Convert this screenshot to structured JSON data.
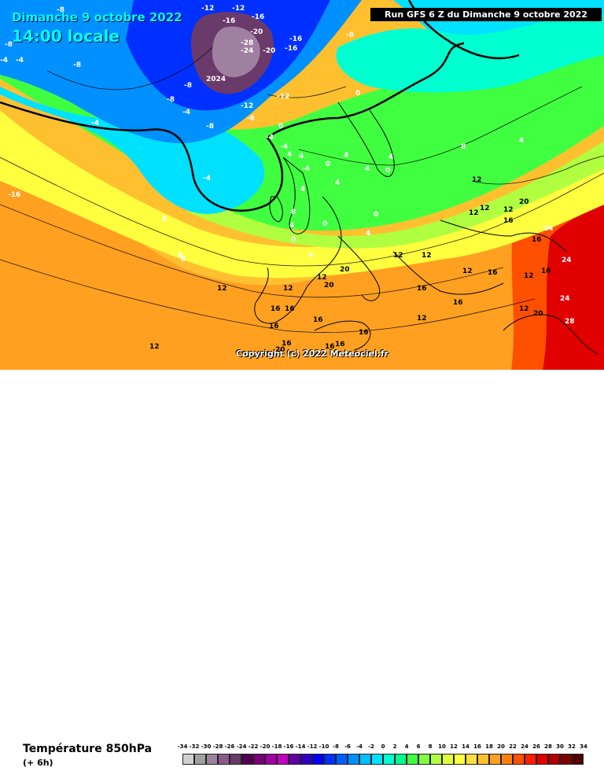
{
  "map": {
    "title_day": "Dimanche 9 octobre 2022",
    "title_time": "14:00 locale",
    "run_label": "Run GFS 6 Z du Dimanche 9 octobre 2022",
    "copyright": "Copyright (c) 2022 Meteociel.fr",
    "labels": [
      {
        "t": "-8",
        "c": "cold"
      },
      {
        "t": "-12",
        "c": "cold"
      },
      {
        "t": "-16",
        "c": "cold"
      },
      {
        "t": "-12",
        "c": "cold"
      },
      {
        "t": "-16",
        "c": "cold"
      },
      {
        "t": "-20",
        "c": "vcold"
      },
      {
        "t": "-28",
        "c": "vcold"
      },
      {
        "t": "-24",
        "c": "vcold"
      },
      {
        "t": "-20",
        "c": "vcold"
      },
      {
        "t": "-16",
        "c": "cold"
      },
      {
        "t": "-16",
        "c": "cold"
      },
      {
        "t": "-8",
        "c": "cold"
      },
      {
        "t": "-8",
        "c": "cold"
      },
      {
        "t": "-8",
        "c": "cold"
      },
      {
        "t": "-4",
        "c": "cold"
      },
      {
        "t": "-12",
        "c": "cold"
      },
      {
        "t": "-12",
        "c": "cold"
      },
      {
        "t": "-8",
        "c": "cold"
      },
      {
        "t": "-4",
        "c": "cold"
      },
      {
        "t": "-4",
        "c": "cold"
      },
      {
        "t": "-8",
        "c": "cold"
      },
      {
        "t": "2024",
        "c": "vcold"
      },
      {
        "t": "-8",
        "c": "cold"
      },
      {
        "t": "0",
        "c": "mid"
      },
      {
        "t": "-4",
        "c": "cold"
      },
      {
        "t": "-4",
        "c": "cold"
      },
      {
        "t": "0",
        "c": "mid"
      },
      {
        "t": "-4",
        "c": "cold"
      },
      {
        "t": "4",
        "c": "mid"
      },
      {
        "t": "4",
        "c": "mid"
      },
      {
        "t": "4",
        "c": "mid"
      },
      {
        "t": "4",
        "c": "mid"
      },
      {
        "t": "0",
        "c": "mid"
      },
      {
        "t": "-4",
        "c": "mid"
      },
      {
        "t": "4",
        "c": "mid"
      },
      {
        "t": "0",
        "c": "mid"
      },
      {
        "t": "0",
        "c": "mid"
      },
      {
        "t": "4",
        "c": "mid"
      },
      {
        "t": "8",
        "c": "mid"
      },
      {
        "t": "4",
        "c": "mid"
      },
      {
        "t": "4",
        "c": "mid"
      },
      {
        "t": "0",
        "c": "mid"
      },
      {
        "t": "0",
        "c": "mid"
      },
      {
        "t": "4",
        "c": "mid"
      },
      {
        "t": "4",
        "c": "mid"
      },
      {
        "t": "8",
        "c": "mid"
      },
      {
        "t": "12",
        "c": "warm"
      },
      {
        "t": "16",
        "c": "warm"
      },
      {
        "t": "16",
        "c": "warm"
      },
      {
        "t": "20",
        "c": "warm"
      },
      {
        "t": "20",
        "c": "warm"
      },
      {
        "t": "24",
        "c": "hot"
      },
      {
        "t": "24",
        "c": "hot"
      },
      {
        "t": "24",
        "c": "hot"
      },
      {
        "t": "28",
        "c": "hot"
      },
      {
        "t": "20",
        "c": "warm"
      },
      {
        "t": "12",
        "c": "warm"
      },
      {
        "t": "12",
        "c": "warm"
      },
      {
        "t": "12",
        "c": "warm"
      },
      {
        "t": "16",
        "c": "warm"
      },
      {
        "t": "16",
        "c": "warm"
      },
      {
        "t": "16",
        "c": "warm"
      },
      {
        "t": "16",
        "c": "warm"
      },
      {
        "t": "12",
        "c": "warm"
      },
      {
        "t": "12",
        "c": "warm"
      },
      {
        "t": "12",
        "c": "warm"
      },
      {
        "t": "16",
        "c": "warm"
      },
      {
        "t": "16",
        "c": "warm"
      },
      {
        "t": "16",
        "c": "warm"
      },
      {
        "t": "20",
        "c": "warm"
      },
      {
        "t": "16",
        "c": "warm"
      },
      {
        "t": "16",
        "c": "warm"
      },
      {
        "t": "16",
        "c": "warm"
      },
      {
        "t": "16",
        "c": "warm"
      },
      {
        "t": "12",
        "c": "warm"
      },
      {
        "t": "12",
        "c": "warm"
      },
      {
        "t": "8",
        "c": "mid"
      },
      {
        "t": "8",
        "c": "mid"
      },
      {
        "t": "12",
        "c": "warm"
      },
      {
        "t": "8",
        "c": "mid"
      },
      {
        "t": "4",
        "c": "mid"
      },
      {
        "t": "-16",
        "c": "cold"
      },
      {
        "t": "-8",
        "c": "cold"
      },
      {
        "t": "-4",
        "c": "cold"
      },
      {
        "t": "12",
        "c": "warm"
      },
      {
        "t": "12",
        "c": "warm"
      },
      {
        "t": "20",
        "c": "warm"
      },
      {
        "t": "16",
        "c": "warm"
      },
      {
        "t": "12",
        "c": "warm"
      },
      {
        "t": "12",
        "c": "warm"
      }
    ]
  },
  "legend": {
    "title": "Température 850hPa",
    "subtitle": "(+ 6h)",
    "ticks": [
      "-34",
      "-32",
      "-30",
      "-28",
      "-26",
      "-24",
      "-22",
      "-20",
      "-18",
      "-16",
      "-14",
      "-12",
      "-10",
      "-8",
      "-6",
      "-4",
      "-2",
      "0",
      "2",
      "4",
      "6",
      "8",
      "10",
      "12",
      "14",
      "16",
      "18",
      "20",
      "22",
      "24",
      "26",
      "28",
      "30",
      "32",
      "34"
    ],
    "colors": [
      "#d0d0d0",
      "#a0a0a0",
      "#a080a0",
      "#8a5a8a",
      "#6a3a6a",
      "#500050",
      "#7a007a",
      "#a000a0",
      "#c000c0",
      "#6000a0",
      "#3000c0",
      "#0000ff",
      "#0030ff",
      "#0060ff",
      "#0090ff",
      "#00c0ff",
      "#00e0ff",
      "#00ffd0",
      "#00ff90",
      "#40ff40",
      "#80ff40",
      "#b0ff40",
      "#e0ff40",
      "#ffff40",
      "#ffe040",
      "#ffc030",
      "#ffa020",
      "#ff8010",
      "#ff5000",
      "#ff2000",
      "#e00000",
      "#b00000",
      "#800000",
      "#500000"
    ]
  }
}
